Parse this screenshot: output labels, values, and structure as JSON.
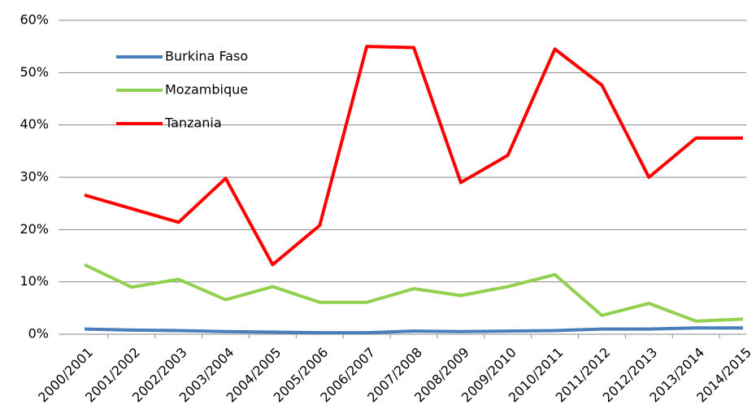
{
  "chart_data": {
    "type": "line",
    "categories": [
      "2000/2001",
      "2001/2002",
      "2002/2003",
      "2003/2004",
      "2004/2005",
      "2005/2006",
      "2006/2007",
      "2007/2008",
      "2008/2009",
      "2009/2010",
      "2010/2011",
      "2011/2012",
      "2012/2013",
      "2013/2014",
      "2014/2015"
    ],
    "series": [
      {
        "name": "Burkina Faso",
        "color": "#4a7ebb",
        "values": [
          1.0,
          0.8,
          0.7,
          0.5,
          0.4,
          0.3,
          0.3,
          0.6,
          0.5,
          0.6,
          0.7,
          1.0,
          1.0,
          1.2,
          1.2
        ]
      },
      {
        "name": "Mozambique",
        "color": "#92d050",
        "values": [
          13.3,
          9.0,
          10.5,
          6.6,
          9.1,
          6.1,
          6.1,
          8.7,
          7.4,
          9.1,
          11.4,
          3.6,
          5.9,
          2.5,
          2.9
        ]
      },
      {
        "name": "Tanzania",
        "color": "#ff0000",
        "values": [
          26.6,
          24.0,
          21.4,
          29.8,
          13.3,
          20.8,
          55.0,
          54.8,
          29.0,
          34.2,
          54.5,
          47.6,
          30.0,
          37.5,
          37.5
        ]
      }
    ],
    "ylim": [
      0,
      60
    ],
    "yticks": [
      {
        "value": 0,
        "label": "0%"
      },
      {
        "value": 10,
        "label": "10%"
      },
      {
        "value": 20,
        "label": "20%"
      },
      {
        "value": 30,
        "label": "30%"
      },
      {
        "value": 40,
        "label": "40%"
      },
      {
        "value": 50,
        "label": "50%"
      },
      {
        "value": 60,
        "label": "60%"
      }
    ],
    "grid": true,
    "legend": "upper left"
  }
}
